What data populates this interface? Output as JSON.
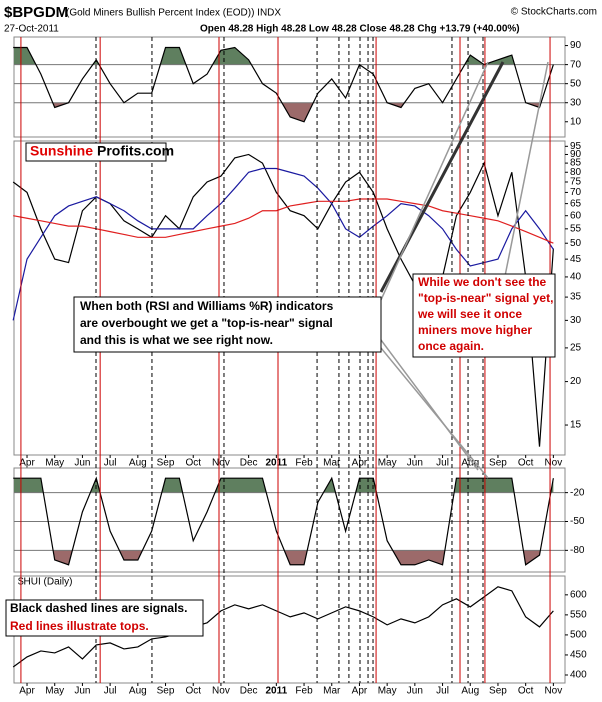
{
  "header": {
    "title": "$BPGDM",
    "subtitle": "(Gold Miners Bullish Percent Index (EOD)) INDX",
    "date": "27-Oct-2011",
    "quote": "Open 48.28  High 48.28  Low 48.28  Close 48.28  Chg +13.79 (+40.00%)",
    "source": "© StockCharts.com",
    "logo_red": "Sunshine",
    "logo_black": "Profits.com"
  },
  "annotations": {
    "main": [
      "When both (RSI and Williams %R) indicators",
      "are overbought we get a \"top-is-near\" signal",
      "and this is what we see right now."
    ],
    "red": [
      "While we don't see the",
      "\"top-is-near\" signal yet,",
      "we will see it once",
      "miners move higher",
      "once again."
    ],
    "legend": [
      "Black dashed lines are signals.",
      "Red lines illustrate tops."
    ]
  },
  "signal_lines": {
    "red_color": "#cc0000",
    "black_color": "#000000",
    "red": [
      -0.22,
      2.64,
      6.93,
      9.06,
      12.6,
      15.63,
      16.53,
      18.88
    ],
    "black_dashed": [
      2.49,
      4.51,
      7.11,
      10.47,
      11.26,
      11.62,
      12.02,
      12.31,
      12.49,
      15.34,
      15.92,
      16.46
    ]
  },
  "chart_data": [
    {
      "type": "line",
      "xlim": [
        -0.47,
        19.42
      ],
      "ylim": [
        -6,
        99
      ],
      "yticks": [
        90,
        70,
        50,
        30,
        10
      ],
      "hlines": [
        70,
        50,
        30
      ],
      "zone_colors": [
        "#5f7f5f",
        "#9c6a6a"
      ],
      "x": [
        -0.5,
        0,
        0.5,
        1,
        1.5,
        2,
        2.5,
        3,
        3.5,
        4,
        4.5,
        5,
        5.5,
        6,
        6.5,
        7,
        7.5,
        8,
        8.5,
        9,
        9.5,
        10,
        10.5,
        11,
        11.5,
        12,
        12.5,
        13,
        13.5,
        14,
        14.5,
        15,
        15.5,
        16,
        16.5,
        17,
        17.5,
        18,
        18.5,
        19
      ],
      "series": [
        {
          "color": "#000000",
          "values": [
            88,
            88,
            60,
            25,
            30,
            55,
            75,
            50,
            30,
            40,
            40,
            88,
            88,
            50,
            60,
            85,
            88,
            75,
            50,
            40,
            15,
            10,
            40,
            55,
            35,
            70,
            60,
            30,
            25,
            45,
            50,
            30,
            55,
            80,
            70,
            75,
            80,
            30,
            25,
            70
          ]
        }
      ]
    },
    {
      "type": "line",
      "log_scale": true,
      "xlim": [
        -0.47,
        19.42
      ],
      "ylim": [
        12.3,
        98.4
      ],
      "yticks": [
        95,
        90,
        85,
        80,
        75,
        70,
        65,
        60,
        55,
        50,
        45,
        40,
        35,
        30,
        25,
        20,
        15
      ],
      "xticks": [
        {
          "value": 0,
          "label": "Apr"
        },
        {
          "value": 1,
          "label": "May"
        },
        {
          "value": 2,
          "label": "Jun"
        },
        {
          "value": 3,
          "label": "Jul"
        },
        {
          "value": 4,
          "label": "Aug"
        },
        {
          "value": 5,
          "label": "Sep"
        },
        {
          "value": 6,
          "label": "Oct"
        },
        {
          "value": 7,
          "label": "Nov"
        },
        {
          "value": 8,
          "label": "Dec"
        },
        {
          "value": 9,
          "label": "2011"
        },
        {
          "value": 10,
          "label": "Feb"
        },
        {
          "value": 11,
          "label": "Mar"
        },
        {
          "value": 12,
          "label": "Apr"
        },
        {
          "value": 13,
          "label": "May"
        },
        {
          "value": 14,
          "label": "Jun"
        },
        {
          "value": 15,
          "label": "Jul"
        },
        {
          "value": 16,
          "label": "Aug"
        },
        {
          "value": 17,
          "label": "Sep"
        },
        {
          "value": 18,
          "label": "Oct"
        },
        {
          "value": 19,
          "label": "Nov"
        }
      ],
      "x": [
        -0.5,
        0,
        0.5,
        1,
        1.5,
        2,
        2.5,
        3,
        3.5,
        4,
        4.5,
        5,
        5.5,
        6,
        6.5,
        7,
        7.5,
        8,
        8.5,
        9,
        9.5,
        10,
        10.5,
        11,
        11.5,
        12,
        12.5,
        13,
        13.5,
        14,
        14.5,
        15,
        15.5,
        16,
        16.5,
        17,
        17.5,
        18,
        18.5,
        19
      ],
      "series": [
        {
          "color": "#000000",
          "values": [
            75,
            70,
            55,
            45,
            44,
            62,
            68,
            65,
            58,
            55,
            52,
            60,
            55,
            68,
            75,
            78,
            88,
            90,
            85,
            70,
            62,
            60,
            55,
            65,
            75,
            80,
            70,
            55,
            45,
            38,
            36,
            40,
            60,
            70,
            85,
            60,
            80,
            40,
            13,
            48.28
          ]
        },
        {
          "color": "#1a1aa0",
          "values": [
            30,
            45,
            52,
            60,
            64,
            66,
            68,
            65,
            62,
            58,
            55,
            55,
            55,
            55,
            60,
            65,
            72,
            80,
            82,
            82,
            80,
            78,
            72,
            65,
            55,
            52,
            56,
            60,
            65,
            64,
            60,
            55,
            48,
            43,
            44,
            45,
            55,
            62,
            55,
            48
          ]
        },
        {
          "color": "#e02020",
          "values": [
            60,
            59,
            58,
            57,
            56,
            56,
            55,
            54,
            53,
            52,
            52,
            52,
            53,
            54,
            55,
            56,
            57,
            59,
            62,
            62,
            64,
            65,
            66,
            66,
            66,
            67,
            67,
            67,
            66,
            65,
            64,
            62,
            61,
            60,
            59,
            58,
            56,
            54,
            52,
            50
          ]
        }
      ]
    },
    {
      "type": "line",
      "xlim": [
        -0.47,
        19.42
      ],
      "ylim": [
        -102.5,
        5.6
      ],
      "yticks": [
        -20,
        -50,
        -80
      ],
      "hlines": [
        -20,
        -50,
        -80
      ],
      "zone_colors": [
        "#5f7f5f",
        "#9c6a6a"
      ],
      "x": [
        -0.5,
        0,
        0.5,
        1,
        1.5,
        2,
        2.5,
        3,
        3.5,
        4,
        4.5,
        5,
        5.5,
        6,
        6.5,
        7,
        7.5,
        8,
        8.5,
        9,
        9.5,
        10,
        10.5,
        11,
        11.5,
        12,
        12.5,
        13,
        13.5,
        14,
        14.5,
        15,
        15.5,
        16,
        16.5,
        17,
        17.5,
        18,
        18.5,
        19
      ],
      "series": [
        {
          "color": "#000000",
          "values": [
            -5,
            -5,
            -5,
            -90,
            -95,
            -40,
            -5,
            -60,
            -90,
            -90,
            -60,
            -5,
            -5,
            -70,
            -40,
            -5,
            -5,
            -5,
            -5,
            -60,
            -95,
            -95,
            -30,
            -5,
            -60,
            -5,
            -5,
            -70,
            -95,
            -95,
            -90,
            -95,
            -5,
            -5,
            -5,
            -5,
            -5,
            -95,
            -85,
            -5
          ]
        }
      ]
    },
    {
      "type": "line",
      "label": "$HUI (Daily)",
      "xlim": [
        -0.47,
        19.42
      ],
      "ylim": [
        380,
        647
      ],
      "yticks": [
        600,
        550,
        500,
        450,
        400
      ],
      "xticks": [
        {
          "value": 0,
          "label": "Apr"
        },
        {
          "value": 1,
          "label": "May"
        },
        {
          "value": 2,
          "label": "Jun"
        },
        {
          "value": 3,
          "label": "Jul"
        },
        {
          "value": 4,
          "label": "Aug"
        },
        {
          "value": 5,
          "label": "Sep"
        },
        {
          "value": 6,
          "label": "Oct"
        },
        {
          "value": 7,
          "label": "Nov"
        },
        {
          "value": 8,
          "label": "Dec"
        },
        {
          "value": 9,
          "label": "2011"
        },
        {
          "value": 10,
          "label": "Feb"
        },
        {
          "value": 11,
          "label": "Mar"
        },
        {
          "value": 12,
          "label": "Apr"
        },
        {
          "value": 13,
          "label": "May"
        },
        {
          "value": 14,
          "label": "Jun"
        },
        {
          "value": 15,
          "label": "Jul"
        },
        {
          "value": 16,
          "label": "Aug"
        },
        {
          "value": 17,
          "label": "Sep"
        },
        {
          "value": 18,
          "label": "Oct"
        },
        {
          "value": 19,
          "label": "Nov"
        }
      ],
      "x": [
        -0.5,
        0,
        0.5,
        1,
        1.5,
        2,
        2.5,
        3,
        3.5,
        4,
        4.5,
        5,
        5.5,
        6,
        6.5,
        7,
        7.5,
        8,
        8.5,
        9,
        9.5,
        10,
        10.5,
        11,
        11.5,
        12,
        12.5,
        13,
        13.5,
        14,
        14.5,
        15,
        15.5,
        16,
        16.5,
        17,
        17.5,
        18,
        18.5,
        19
      ],
      "series": [
        {
          "color": "#000000",
          "values": [
            420,
            445,
            460,
            455,
            470,
            440,
            475,
            480,
            465,
            470,
            490,
            495,
            505,
            520,
            530,
            560,
            575,
            565,
            575,
            560,
            545,
            555,
            540,
            555,
            570,
            560,
            545,
            525,
            540,
            530,
            545,
            575,
            590,
            570,
            595,
            620,
            610,
            545,
            520,
            560
          ]
        }
      ]
    }
  ]
}
